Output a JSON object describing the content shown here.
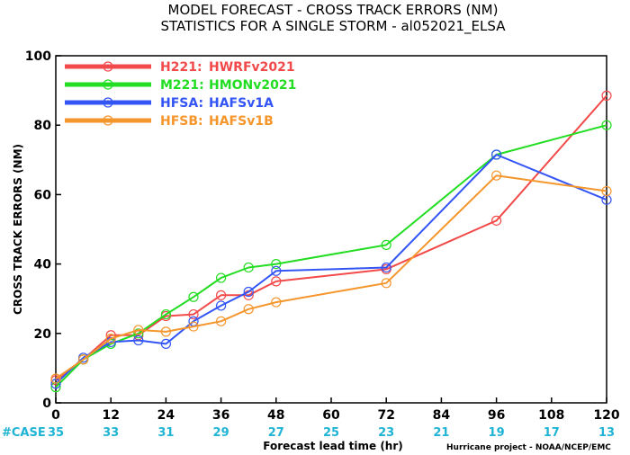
{
  "chart_data": {
    "type": "line",
    "title_line1": "MODEL FORECAST - CROSS TRACK ERRORS (NM)",
    "title_line2": "STATISTICS FOR A SINGLE STORM - al052021_ELSA",
    "ylabel": "CROSS TRACK ERRORS (NM)",
    "xlabel": "Forecast lead time (hr)",
    "credit": "Hurricane project - NOAA/NCEP/EMC",
    "case_label": "#CASE",
    "xlim": [
      0,
      120
    ],
    "ylim": [
      0,
      100
    ],
    "x_ticks": [
      "0",
      "12",
      "24",
      "36",
      "48",
      "60",
      "72",
      "84",
      "96",
      "108",
      "120"
    ],
    "y_ticks": [
      "0",
      "20",
      "40",
      "60",
      "80",
      "100"
    ],
    "case_counts": [
      "35",
      "33",
      "31",
      "29",
      "27",
      "25",
      "23",
      "21",
      "19",
      "17",
      "13"
    ],
    "grid": false,
    "legend_position": "top-left",
    "series": [
      {
        "name": "H221:",
        "label": "HWRFv2021",
        "color": "#f24a4a",
        "x": [
          0,
          6,
          12,
          18,
          24,
          30,
          36,
          42,
          48,
          72,
          96,
          120
        ],
        "y": [
          6.5,
          12.5,
          19.5,
          19.5,
          25,
          25.5,
          31,
          31,
          35,
          38.5,
          52.5,
          88.5
        ]
      },
      {
        "name": "M221:",
        "label": "HMONv2021",
        "color": "#22dd22",
        "x": [
          0,
          6,
          12,
          18,
          24,
          30,
          36,
          42,
          48,
          72,
          96,
          120
        ],
        "y": [
          4.5,
          12.5,
          17,
          20,
          25.5,
          30.5,
          36,
          39,
          40,
          45.5,
          71.5,
          80
        ]
      },
      {
        "name": "HFSA:",
        "label": "HAFSv1A",
        "color": "#3355f5",
        "x": [
          0,
          6,
          12,
          18,
          24,
          30,
          36,
          42,
          48,
          72,
          96,
          120
        ],
        "y": [
          5.5,
          13,
          17.5,
          18,
          17,
          23.5,
          28,
          32,
          38,
          39,
          71.5,
          58.5
        ]
      },
      {
        "name": "HFSB:",
        "label": "HAFSv1B",
        "color": "#f5962d",
        "x": [
          0,
          6,
          12,
          18,
          24,
          30,
          36,
          42,
          48,
          72,
          96,
          120
        ],
        "y": [
          7,
          12.5,
          18.5,
          21,
          20.5,
          22,
          23.5,
          27,
          29,
          34.5,
          65.5,
          61
        ]
      }
    ]
  }
}
